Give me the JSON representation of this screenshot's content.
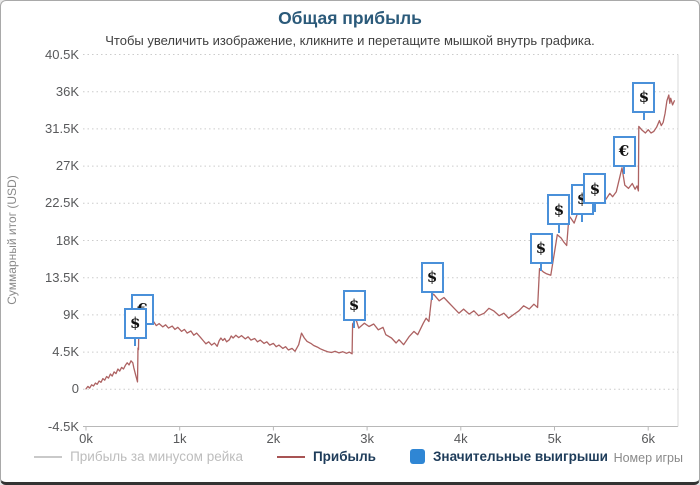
{
  "header": {
    "title": "Общая прибыль",
    "subtitle": "Чтобы увеличить изображение, кликните и перетащите мышкой внутрь графика."
  },
  "y_axis": {
    "title": "Суммарный итог (USD)",
    "ticks": [
      {
        "label": "40.5K",
        "value": 40500
      },
      {
        "label": "36K",
        "value": 36000
      },
      {
        "label": "31.5K",
        "value": 31500
      },
      {
        "label": "27K",
        "value": 27000
      },
      {
        "label": "22.5K",
        "value": 22500
      },
      {
        "label": "18K",
        "value": 18000
      },
      {
        "label": "13.5K",
        "value": 13500
      },
      {
        "label": "9K",
        "value": 9000
      },
      {
        "label": "4.5K",
        "value": 4500
      },
      {
        "label": "0",
        "value": 0
      },
      {
        "label": "-4.5K",
        "value": -4500
      }
    ]
  },
  "x_axis": {
    "title": "Номер игры",
    "ticks": [
      {
        "label": "0k",
        "value": 0
      },
      {
        "label": "1k",
        "value": 1
      },
      {
        "label": "2k",
        "value": 2
      },
      {
        "label": "3k",
        "value": 3
      },
      {
        "label": "4k",
        "value": 4
      },
      {
        "label": "5k",
        "value": 5
      },
      {
        "label": "6k",
        "value": 6
      }
    ]
  },
  "legend": {
    "items": [
      {
        "label": "Прибыль за минусом рейка",
        "swatch": "line",
        "color": "#c9c9c9",
        "disabled": true
      },
      {
        "label": "Прибыль",
        "swatch": "line",
        "color": "#a85454",
        "disabled": false
      },
      {
        "label": "Значительные выигрыши",
        "swatch": "square",
        "color": "#2f86d4",
        "disabled": false
      }
    ]
  },
  "colors": {
    "title": "#2b5a7a",
    "profit_line": "#ad6262",
    "marker_border": "#4a90d9",
    "legend_blue": "#2f86d4",
    "gridline": "#cccccc",
    "axis_line": "#b8b8b8"
  },
  "chart_data": {
    "type": "line",
    "title": "Общая прибыль",
    "xlabel": "Номер игры",
    "ylabel": "Суммарный итог (USD)",
    "x_unit": "games_thousands",
    "y_unit": "USD",
    "xlim": [
      0,
      6.33
    ],
    "ylim": [
      -4500,
      40500
    ],
    "grid": "horizontal-dotted",
    "legend_position": "bottom",
    "series": [
      {
        "name": "Прибыль",
        "color": "#ad6262",
        "points": [
          [
            0.0,
            50
          ],
          [
            0.02,
            350
          ],
          [
            0.04,
            150
          ],
          [
            0.06,
            550
          ],
          [
            0.08,
            400
          ],
          [
            0.1,
            750
          ],
          [
            0.12,
            600
          ],
          [
            0.14,
            1000
          ],
          [
            0.16,
            850
          ],
          [
            0.18,
            1300
          ],
          [
            0.2,
            1100
          ],
          [
            0.22,
            1550
          ],
          [
            0.24,
            1350
          ],
          [
            0.26,
            1850
          ],
          [
            0.28,
            1600
          ],
          [
            0.3,
            2100
          ],
          [
            0.32,
            1900
          ],
          [
            0.34,
            2450
          ],
          [
            0.36,
            2200
          ],
          [
            0.38,
            2650
          ],
          [
            0.4,
            2450
          ],
          [
            0.42,
            2900
          ],
          [
            0.44,
            3200
          ],
          [
            0.46,
            2950
          ],
          [
            0.48,
            3450
          ],
          [
            0.5,
            3200
          ],
          [
            0.51,
            2600
          ],
          [
            0.53,
            1700
          ],
          [
            0.55,
            900
          ],
          [
            0.555,
            5000
          ],
          [
            0.56,
            4800
          ],
          [
            0.565,
            7900
          ],
          [
            0.6,
            8200
          ],
          [
            0.63,
            7800
          ],
          [
            0.66,
            8300
          ],
          [
            0.69,
            8000
          ],
          [
            0.72,
            8200
          ],
          [
            0.75,
            7700
          ],
          [
            0.78,
            7950
          ],
          [
            0.82,
            7550
          ],
          [
            0.85,
            7800
          ],
          [
            0.88,
            7400
          ],
          [
            0.92,
            7650
          ],
          [
            0.95,
            7250
          ],
          [
            0.98,
            7500
          ],
          [
            1.02,
            7000
          ],
          [
            1.05,
            7250
          ],
          [
            1.08,
            6800
          ],
          [
            1.12,
            7050
          ],
          [
            1.15,
            6550
          ],
          [
            1.18,
            6800
          ],
          [
            1.22,
            6300
          ],
          [
            1.25,
            5900
          ],
          [
            1.28,
            5500
          ],
          [
            1.31,
            5750
          ],
          [
            1.34,
            5350
          ],
          [
            1.37,
            5600
          ],
          [
            1.4,
            5200
          ],
          [
            1.42,
            5850
          ],
          [
            1.44,
            6200
          ],
          [
            1.46,
            5900
          ],
          [
            1.48,
            6150
          ],
          [
            1.5,
            5750
          ],
          [
            1.53,
            6000
          ],
          [
            1.55,
            6450
          ],
          [
            1.57,
            6200
          ],
          [
            1.6,
            6550
          ],
          [
            1.63,
            6250
          ],
          [
            1.66,
            6500
          ],
          [
            1.7,
            6100
          ],
          [
            1.73,
            6350
          ],
          [
            1.76,
            5950
          ],
          [
            1.8,
            6150
          ],
          [
            1.83,
            5750
          ],
          [
            1.86,
            5950
          ],
          [
            1.9,
            5550
          ],
          [
            1.93,
            5750
          ],
          [
            1.96,
            5350
          ],
          [
            2.0,
            5550
          ],
          [
            2.03,
            5150
          ],
          [
            2.06,
            5350
          ],
          [
            2.1,
            4950
          ],
          [
            2.13,
            5150
          ],
          [
            2.16,
            4750
          ],
          [
            2.2,
            4950
          ],
          [
            2.23,
            4600
          ],
          [
            2.27,
            5400
          ],
          [
            2.3,
            6800
          ],
          [
            2.33,
            6200
          ],
          [
            2.36,
            5800
          ],
          [
            2.4,
            5550
          ],
          [
            2.43,
            5300
          ],
          [
            2.47,
            5100
          ],
          [
            2.5,
            4900
          ],
          [
            2.54,
            4700
          ],
          [
            2.58,
            4550
          ],
          [
            2.62,
            4450
          ],
          [
            2.66,
            4600
          ],
          [
            2.7,
            4400
          ],
          [
            2.74,
            4550
          ],
          [
            2.78,
            4350
          ],
          [
            2.81,
            4500
          ],
          [
            2.84,
            4300
          ],
          [
            2.845,
            7900
          ],
          [
            2.88,
            8500
          ],
          [
            2.91,
            7400
          ],
          [
            2.97,
            8000
          ],
          [
            3.02,
            7600
          ],
          [
            3.07,
            7900
          ],
          [
            3.12,
            7200
          ],
          [
            3.17,
            7500
          ],
          [
            3.2,
            6600
          ],
          [
            3.26,
            6200
          ],
          [
            3.31,
            5600
          ],
          [
            3.34,
            6000
          ],
          [
            3.39,
            5400
          ],
          [
            3.45,
            6400
          ],
          [
            3.5,
            7000
          ],
          [
            3.54,
            6600
          ],
          [
            3.6,
            8000
          ],
          [
            3.63,
            8600
          ],
          [
            3.66,
            8200
          ],
          [
            3.69,
            11300
          ],
          [
            3.71,
            11500
          ],
          [
            3.77,
            10700
          ],
          [
            3.82,
            11100
          ],
          [
            3.87,
            10500
          ],
          [
            3.93,
            9800
          ],
          [
            3.98,
            9200
          ],
          [
            4.03,
            9700
          ],
          [
            4.09,
            9100
          ],
          [
            4.14,
            9500
          ],
          [
            4.19,
            8900
          ],
          [
            4.25,
            9200
          ],
          [
            4.3,
            9800
          ],
          [
            4.35,
            9500
          ],
          [
            4.41,
            8900
          ],
          [
            4.46,
            9200
          ],
          [
            4.51,
            8600
          ],
          [
            4.57,
            9100
          ],
          [
            4.62,
            9500
          ],
          [
            4.67,
            10100
          ],
          [
            4.73,
            9700
          ],
          [
            4.78,
            10300
          ],
          [
            4.82,
            9900
          ],
          [
            4.84,
            14600
          ],
          [
            4.88,
            14200
          ],
          [
            4.91,
            14000
          ],
          [
            4.96,
            13800
          ],
          [
            5.03,
            18700
          ],
          [
            5.07,
            18300
          ],
          [
            5.1,
            17800
          ],
          [
            5.13,
            17400
          ],
          [
            5.155,
            21000
          ],
          [
            5.18,
            20600
          ],
          [
            5.21,
            20100
          ],
          [
            5.27,
            22100
          ],
          [
            5.31,
            21600
          ],
          [
            5.34,
            22000
          ],
          [
            5.36,
            21700
          ],
          [
            5.44,
            23100
          ],
          [
            5.47,
            22700
          ],
          [
            5.51,
            23400
          ],
          [
            5.55,
            23000
          ],
          [
            5.59,
            23700
          ],
          [
            5.62,
            23300
          ],
          [
            5.66,
            23900
          ],
          [
            5.72,
            26800
          ],
          [
            5.75,
            24700
          ],
          [
            5.79,
            24300
          ],
          [
            5.83,
            24900
          ],
          [
            5.86,
            24200
          ],
          [
            5.88,
            24600
          ],
          [
            5.895,
            24000
          ],
          [
            5.9,
            31800
          ],
          [
            5.93,
            31400
          ],
          [
            5.97,
            31000
          ],
          [
            6.0,
            31400
          ],
          [
            6.03,
            31000
          ],
          [
            6.06,
            31200
          ],
          [
            6.09,
            31700
          ],
          [
            6.12,
            32500
          ],
          [
            6.14,
            31900
          ],
          [
            6.16,
            32300
          ],
          [
            6.18,
            33400
          ],
          [
            6.2,
            34900
          ],
          [
            6.22,
            35600
          ],
          [
            6.23,
            34600
          ],
          [
            6.24,
            35200
          ],
          [
            6.26,
            34400
          ],
          [
            6.28,
            34900
          ]
        ]
      }
    ],
    "markers": [
      {
        "symbol": "€",
        "game_k": 0.6,
        "box_value": 9700
      },
      {
        "symbol": "$",
        "game_k": 0.525,
        "box_value": 8000
      },
      {
        "symbol": "$",
        "game_k": 2.861,
        "box_value": 10150
      },
      {
        "symbol": "$",
        "game_k": 3.693,
        "box_value": 13580
      },
      {
        "symbol": "$",
        "game_k": 4.856,
        "box_value": 17090
      },
      {
        "symbol": "$",
        "game_k": 5.048,
        "box_value": 21690
      },
      {
        "symbol": "$",
        "game_k": 5.294,
        "box_value": 23020
      },
      {
        "symbol": "$",
        "game_k": 5.432,
        "box_value": 24230
      },
      {
        "symbol": "€",
        "game_k": 5.742,
        "box_value": 28820
      },
      {
        "symbol": "$",
        "game_k": 5.955,
        "box_value": 35350
      }
    ]
  }
}
